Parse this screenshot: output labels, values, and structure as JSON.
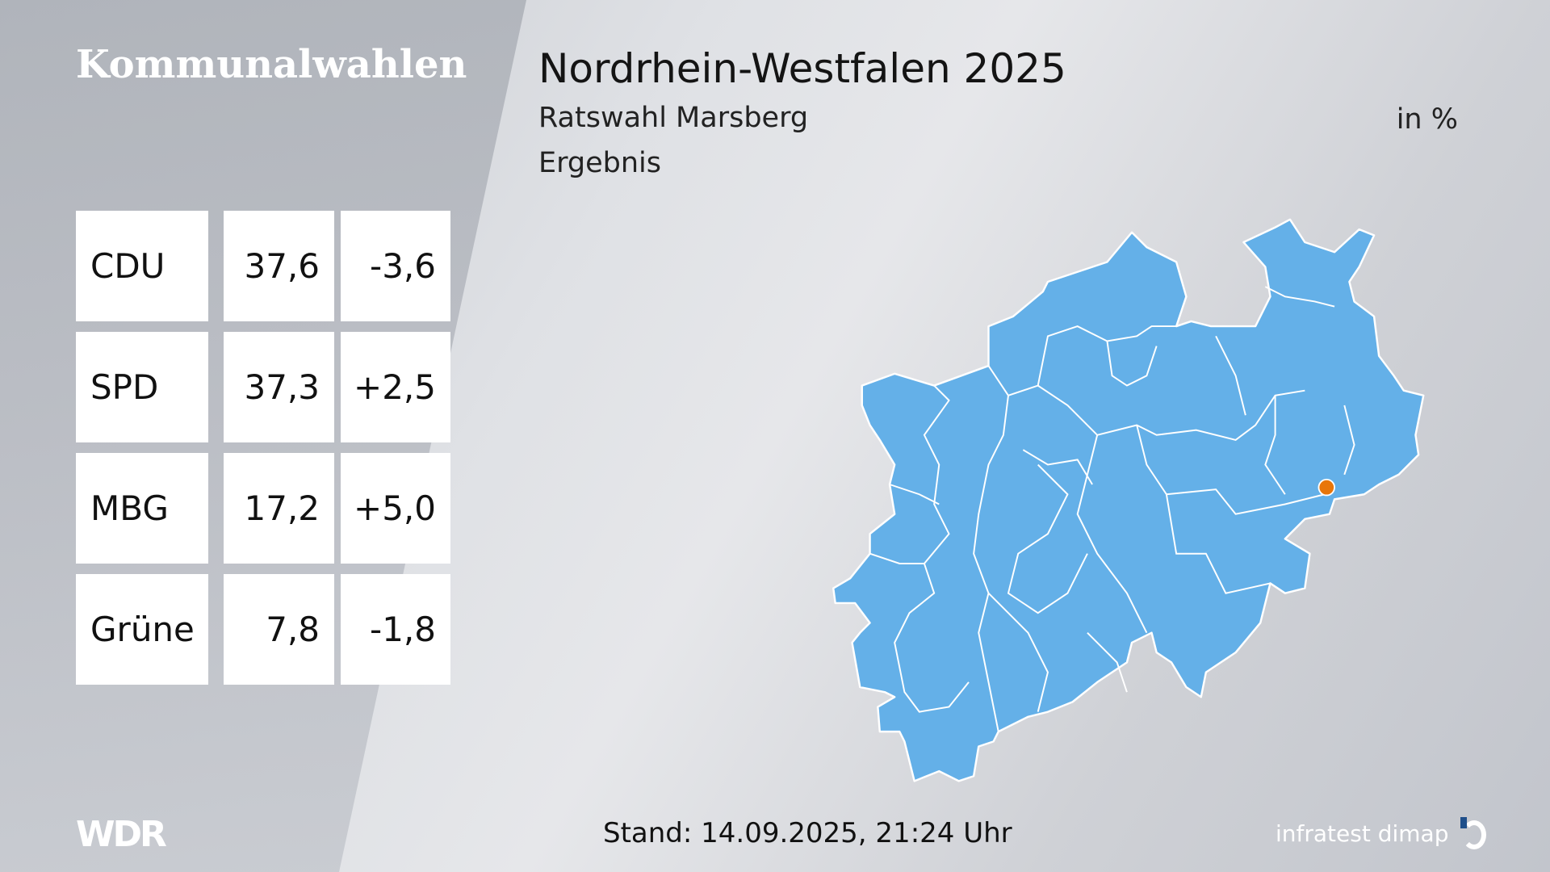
{
  "header": {
    "brand": "Kommunalwahlen",
    "title": "Nordrhein-Westfalen 2025",
    "subtitle": "Ratswahl Marsberg",
    "result_label": "Ergebnis",
    "unit": "in %"
  },
  "results": [
    {
      "party": "CDU",
      "value": "37,6",
      "change": "-3,6"
    },
    {
      "party": "SPD",
      "value": "37,3",
      "change": "+2,5"
    },
    {
      "party": "MBG",
      "value": "17,2",
      "change": "+5,0"
    },
    {
      "party": "Grüne",
      "value": "7,8",
      "change": "-1,8"
    }
  ],
  "map": {
    "fill_color": "#64b0e8",
    "border_color": "#ffffff",
    "highlight_color": "#e8760a",
    "highlight": "Marsberg"
  },
  "footer": {
    "timestamp": "Stand: 14.09.2025, 21:24 Uhr",
    "logo_left": "WDR",
    "logo_right": "infratest dimap"
  }
}
